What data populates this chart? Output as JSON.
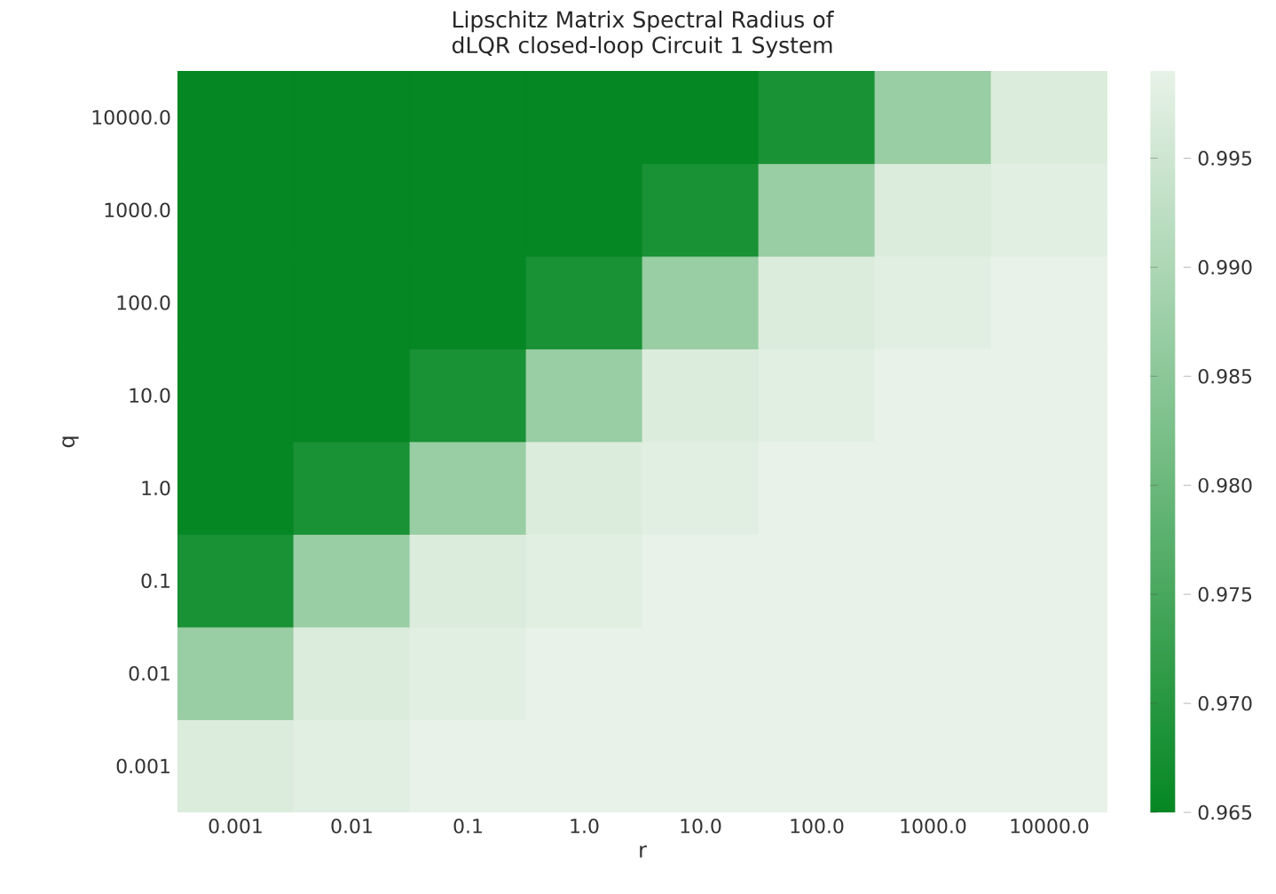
{
  "chart_data": {
    "type": "heatmap",
    "title": "Lipschitz Matrix Spectral Radius of dLQR closed-loop Circuit 1 System",
    "xlabel": "r",
    "ylabel": "q",
    "categories": [
      "0.001",
      "0.01",
      "0.1",
      "1.0",
      "10.0",
      "100.0",
      "1000.0",
      "10000.0"
    ],
    "y_categories": [
      "10000.0",
      "1000.0",
      "100.0",
      "10.0",
      "1.0",
      "0.1",
      "0.01",
      "0.001"
    ],
    "cells": [
      [
        0.965,
        0.965,
        0.965,
        0.965,
        0.965,
        0.968,
        0.987,
        0.997
      ],
      [
        0.965,
        0.965,
        0.965,
        0.965,
        0.968,
        0.987,
        0.997,
        0.998
      ],
      [
        0.965,
        0.965,
        0.965,
        0.968,
        0.987,
        0.997,
        0.998,
        0.999
      ],
      [
        0.965,
        0.965,
        0.968,
        0.987,
        0.997,
        0.998,
        0.999,
        0.999
      ],
      [
        0.965,
        0.968,
        0.987,
        0.997,
        0.998,
        0.999,
        0.999,
        0.999
      ],
      [
        0.968,
        0.987,
        0.997,
        0.998,
        0.999,
        0.999,
        0.999,
        0.999
      ],
      [
        0.987,
        0.997,
        0.998,
        0.999,
        0.999,
        0.999,
        0.999,
        0.999
      ],
      [
        0.997,
        0.998,
        0.999,
        0.999,
        0.999,
        0.999,
        0.999,
        0.999
      ]
    ],
    "clim": [
      0.965,
      0.999
    ],
    "cticks": [
      0.965,
      {
        "value": 0.97,
        "label": "0.970"
      },
      0.975,
      {
        "value": 0.98,
        "label": "0.980"
      },
      0.985,
      {
        "value": 0.99,
        "label": "0.990"
      },
      0.995
    ]
  }
}
